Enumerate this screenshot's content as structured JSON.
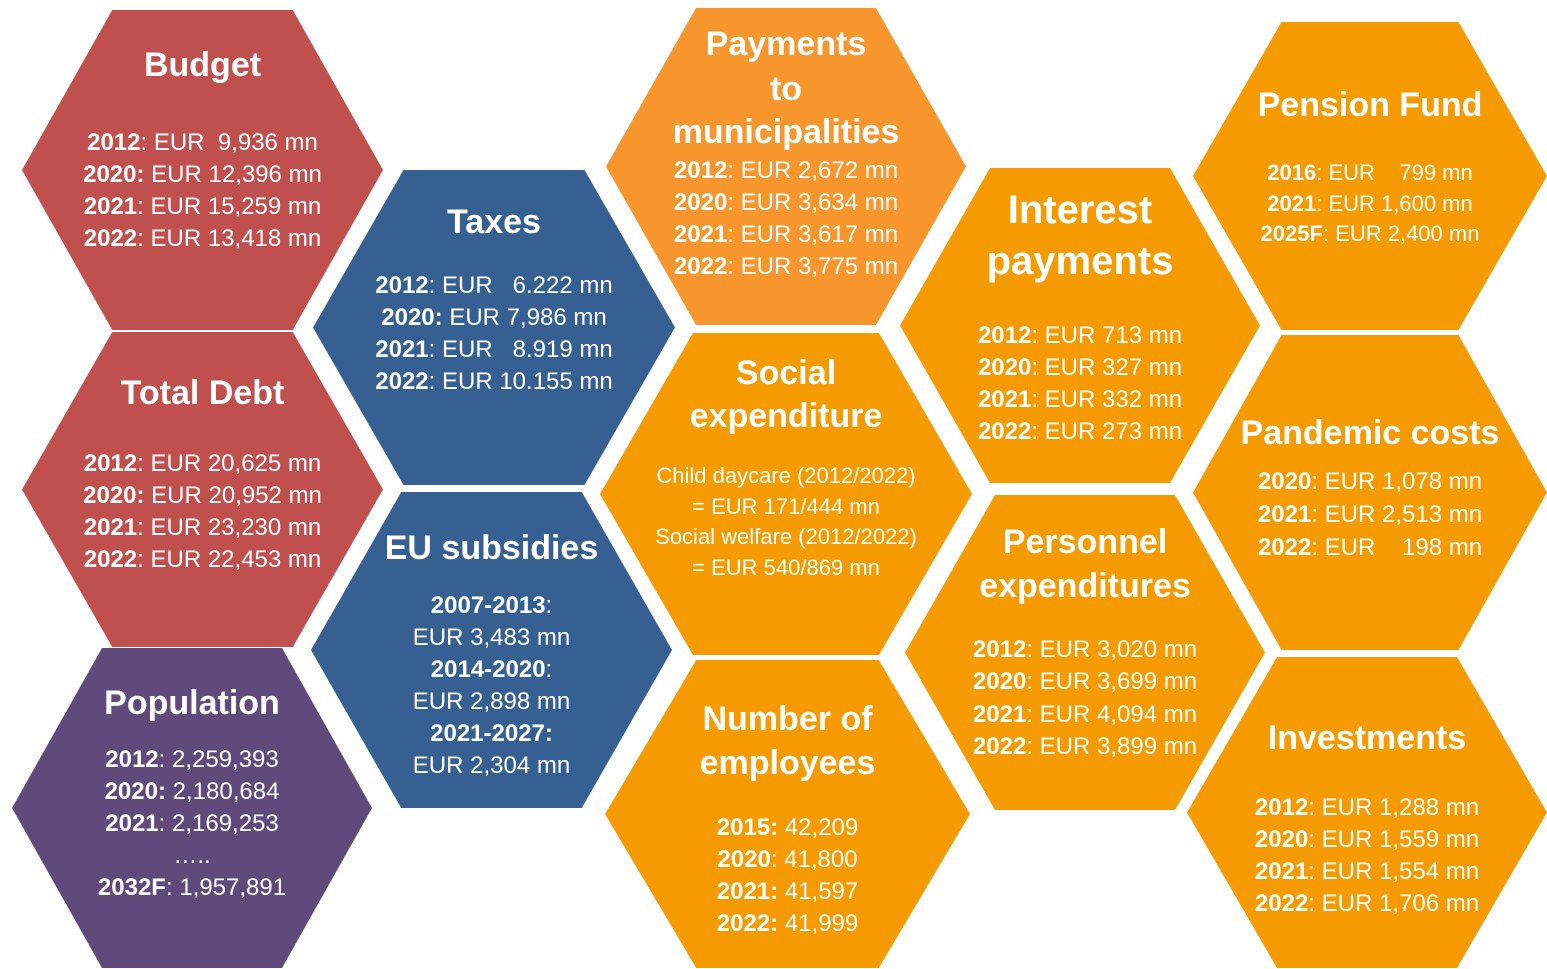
{
  "hexagons": [
    {
      "title": [
        "Budget"
      ],
      "lines": [
        {
          "bold": "2012",
          "text": ": EUR  9,936 mn"
        },
        {
          "bold": "2020:",
          "text": " EUR 12,396 mn"
        },
        {
          "bold": "2021",
          "text": ": EUR 15,259 mn"
        },
        {
          "bold": "2022",
          "text": ": EUR 13,418 mn"
        }
      ]
    },
    {
      "title": [
        "Total Debt"
      ],
      "lines": [
        {
          "bold": "2012",
          "text": ": EUR 20,625 mn"
        },
        {
          "bold": "2020:",
          "text": " EUR 20,952 mn"
        },
        {
          "bold": "2021",
          "text": ": EUR 23,230 mn"
        },
        {
          "bold": "2022",
          "text": ": EUR 22,453 mn"
        }
      ]
    },
    {
      "title": [
        "Population"
      ],
      "lines": [
        {
          "bold": "2012",
          "text": ": 2,259,393"
        },
        {
          "bold": "2020:",
          "text": " 2,180,684"
        },
        {
          "bold": "2021",
          "text": ": 2,169,253"
        },
        {
          "text": "….."
        },
        {
          "bold": "2032F",
          "text": ": 1,957,891"
        }
      ]
    },
    {
      "title": [
        "Taxes"
      ],
      "lines": [
        {
          "bold": "2012",
          "text": ": EUR   6.222 mn"
        },
        {
          "bold": "2020:",
          "text": " EUR 7,986 mn"
        },
        {
          "bold": "2021",
          "text": ": EUR   8.919 mn"
        },
        {
          "bold": "2022",
          "text": ": EUR 10.155 mn"
        }
      ]
    },
    {
      "title": [
        "EU subsidies"
      ],
      "lines": [
        {
          "bold": "2007-2013",
          "text": ":"
        },
        {
          "text": "EUR 3,483 mn"
        },
        {
          "bold": "2014-2020",
          "text": ":"
        },
        {
          "text": "EUR 2,898 mn"
        },
        {
          "bold": "2021-2027:"
        },
        {
          "text": "EUR 2,304 mn"
        }
      ]
    },
    {
      "title": [
        "Payments",
        "to",
        "municipalities"
      ],
      "lines": [
        {
          "bold": "2012",
          "text": ": EUR 2,672 mn"
        },
        {
          "bold": "2020",
          "text": ": EUR 3,634 mn"
        },
        {
          "bold": "2021",
          "text": ": EUR 3,617 mn"
        },
        {
          "bold": "2022",
          "text": ": EUR 3,775 mn"
        }
      ]
    },
    {
      "title": [
        "Social",
        "expenditure"
      ],
      "lines": [
        {
          "text": "Child daycare (2012/2022)"
        },
        {
          "text": "= EUR 171/444 mn"
        },
        {
          "text": "Social welfare (2012/2022)"
        },
        {
          "text": "= EUR 540/869 mn"
        }
      ]
    },
    {
      "title": [
        "Number of",
        "employees"
      ],
      "lines": [
        {
          "bold": "2015:",
          "text": " 42,209"
        },
        {
          "bold": "2020",
          "text": ": 41,800"
        },
        {
          "bold": "2021:",
          "text": " 41,597"
        },
        {
          "bold": "2022:",
          "text": " 41,999"
        }
      ]
    },
    {
      "title": [
        "Interest",
        "payments"
      ],
      "lines": [
        {
          "bold": "2012",
          "text": ": EUR 713 mn"
        },
        {
          "bold": "2020",
          "text": ": EUR 327 mn"
        },
        {
          "bold": "2021",
          "text": ": EUR 332 mn"
        },
        {
          "bold": "2022",
          "text": ": EUR 273 mn"
        }
      ]
    },
    {
      "title": [
        "Personnel",
        "expenditures"
      ],
      "lines": [
        {
          "bold": "2012",
          "text": ": EUR 3,020 mn"
        },
        {
          "bold": "2020",
          "text": ": EUR 3,699 mn"
        },
        {
          "bold": "2021",
          "text": ": EUR 4,094 mn"
        },
        {
          "bold": "2022",
          "text": ": EUR 3,899 mn"
        }
      ]
    },
    {
      "title": [
        "Pension Fund"
      ],
      "lines": [
        {
          "bold": "2016",
          "text": ": EUR    799 mn"
        },
        {
          "bold": "2021",
          "text": ": EUR 1,600 mn"
        },
        {
          "bold": "2025F",
          "text": ": EUR 2,400 mn"
        }
      ]
    },
    {
      "title": [
        "Pandemic costs"
      ],
      "lines": [
        {
          "bold": "2020",
          "text": ": EUR 1,078 mn"
        },
        {
          "bold": "2021",
          "text": ": EUR 2,513 mn"
        },
        {
          "bold": "2022",
          "text": ": EUR    198 mn"
        }
      ]
    },
    {
      "title": [
        "Investments"
      ],
      "lines": [
        {
          "bold": "2012",
          "text": ": EUR 1,288 mn"
        },
        {
          "bold": "2020",
          "text": ": EUR 1,559 mn"
        },
        {
          "bold": "2021",
          "text": ": EUR 1,554 mn"
        },
        {
          "bold": "2022",
          "text": ": EUR 1,706 mn"
        }
      ]
    }
  ]
}
